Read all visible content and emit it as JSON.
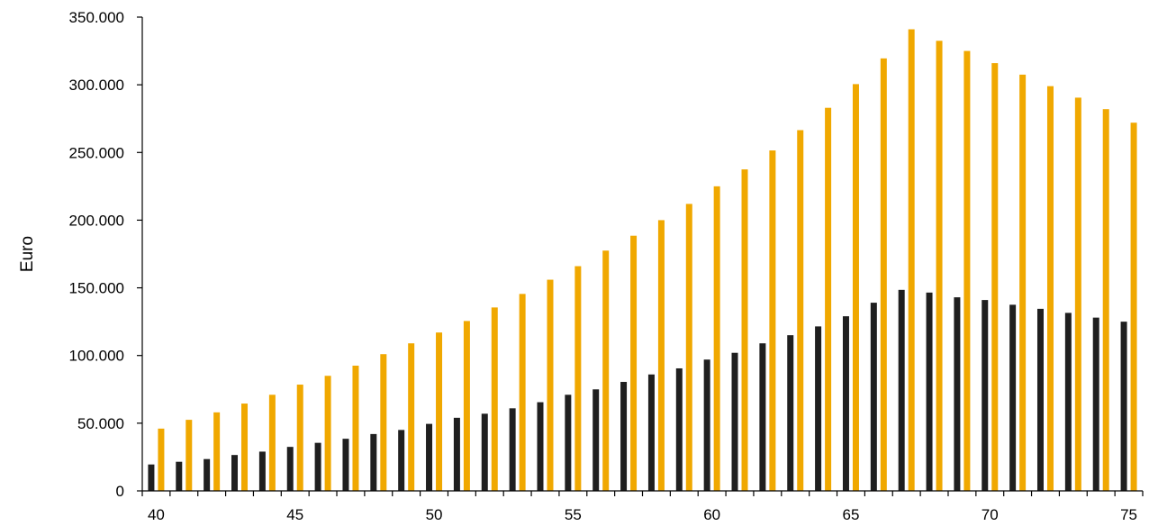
{
  "chart_data": {
    "type": "bar",
    "title": "",
    "xlabel": "",
    "ylabel": "Euro",
    "ylim": [
      0,
      350000
    ],
    "xlim": [
      40,
      75
    ],
    "grid": false,
    "x": [
      40,
      41,
      42,
      43,
      44,
      45,
      46,
      47,
      48,
      49,
      50,
      51,
      52,
      53,
      54,
      55,
      56,
      57,
      58,
      59,
      60,
      61,
      62,
      63,
      64,
      65,
      66,
      67,
      68,
      69,
      70,
      71,
      72,
      73,
      74,
      75
    ],
    "x_tick_labels": [
      "40",
      "45",
      "50",
      "55",
      "60",
      "65",
      "70",
      "75"
    ],
    "y_tick_labels": [
      "0",
      "50.000",
      "100.000",
      "150.000",
      "200.000",
      "250.000",
      "300.000",
      "350.000"
    ],
    "y_ticks": [
      0,
      50000,
      100000,
      150000,
      200000,
      250000,
      300000,
      350000
    ],
    "x_ticks": [
      40,
      45,
      50,
      55,
      60,
      65,
      70,
      75
    ],
    "colors": [
      "#1f1f1f",
      "#f0a800"
    ],
    "series": [
      {
        "values": [
          19500,
          21500,
          23500,
          26500,
          29000,
          32500,
          35500,
          38500,
          42000,
          45000,
          49500,
          54000,
          57000,
          61000,
          65500,
          71000,
          75000,
          80500,
          86000,
          90500,
          97000,
          102000,
          109000,
          115000,
          121500,
          129000,
          139000,
          148500,
          146500,
          143000,
          141000,
          137500,
          134500,
          131500,
          128000,
          125000
        ]
      },
      {
        "values": [
          46000,
          52500,
          58000,
          64500,
          71000,
          78500,
          85000,
          92500,
          101000,
          109000,
          117000,
          125500,
          135500,
          145500,
          156000,
          166000,
          177500,
          188500,
          200000,
          212000,
          225000,
          237500,
          251500,
          266500,
          283000,
          300500,
          319500,
          341000,
          332500,
          325000,
          316000,
          307500,
          299000,
          290500,
          282000,
          272000
        ]
      }
    ]
  }
}
